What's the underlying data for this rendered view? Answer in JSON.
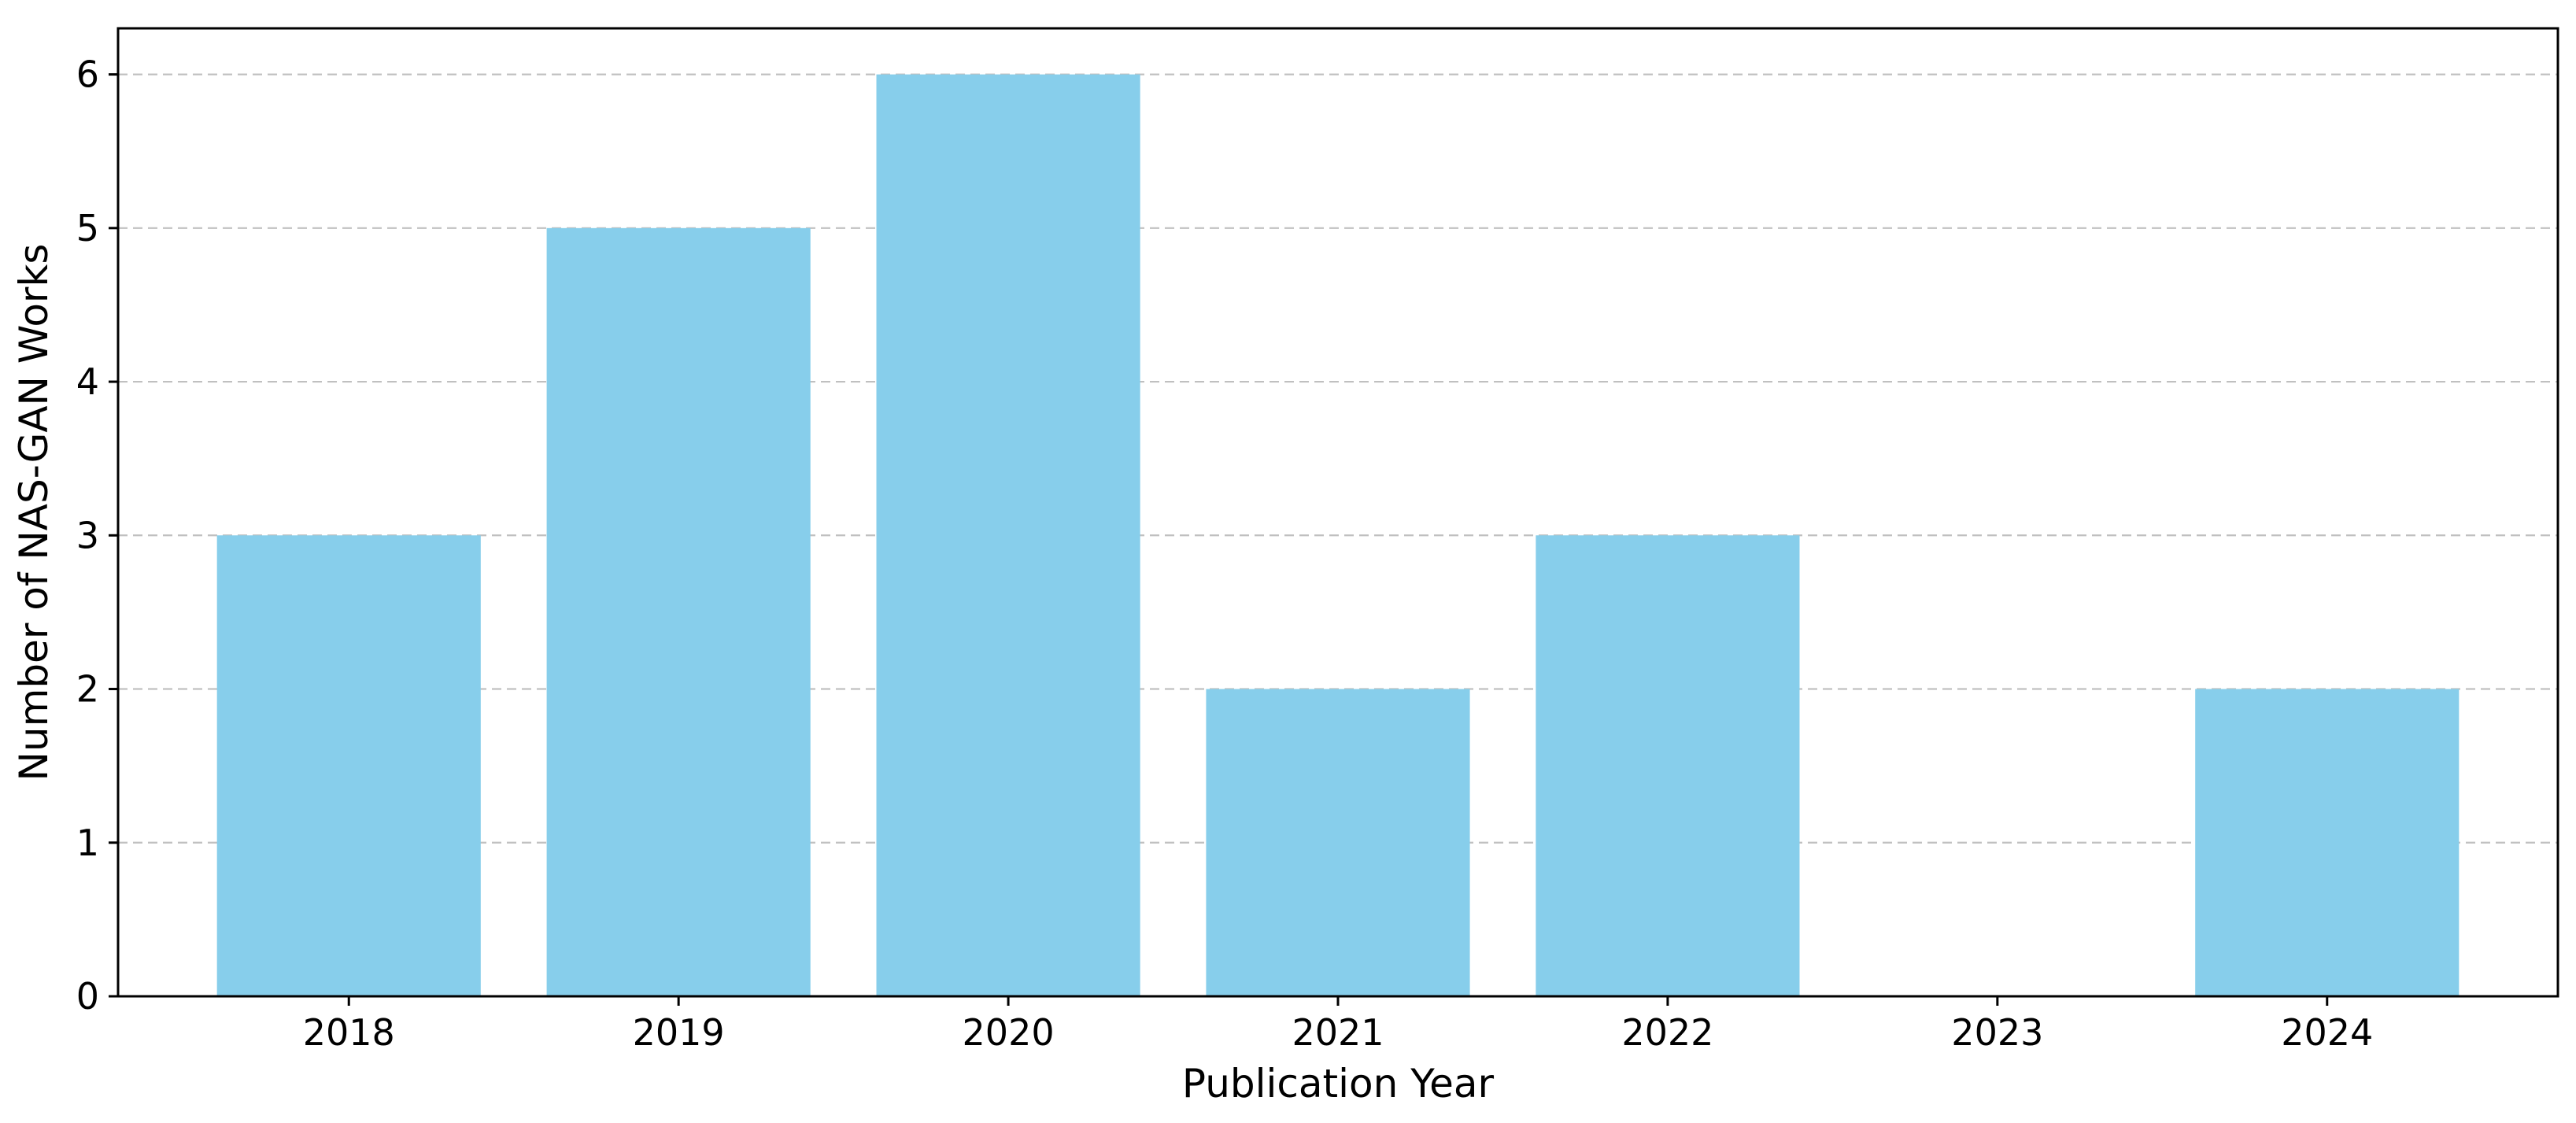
{
  "chart_data": {
    "type": "bar",
    "title": "",
    "xlabel": "Publication Year",
    "ylabel": "Number of NAS-GAN Works",
    "categories": [
      "2018",
      "2019",
      "2020",
      "2021",
      "2022",
      "2023",
      "2024"
    ],
    "values": [
      3,
      5,
      6,
      2,
      3,
      0,
      2
    ],
    "ylim": [
      0,
      6.3
    ],
    "yticks": [
      "0",
      "1",
      "2",
      "3",
      "4",
      "5",
      "6"
    ],
    "grid": "y, dashed",
    "bar_color": "#87CEEB"
  }
}
